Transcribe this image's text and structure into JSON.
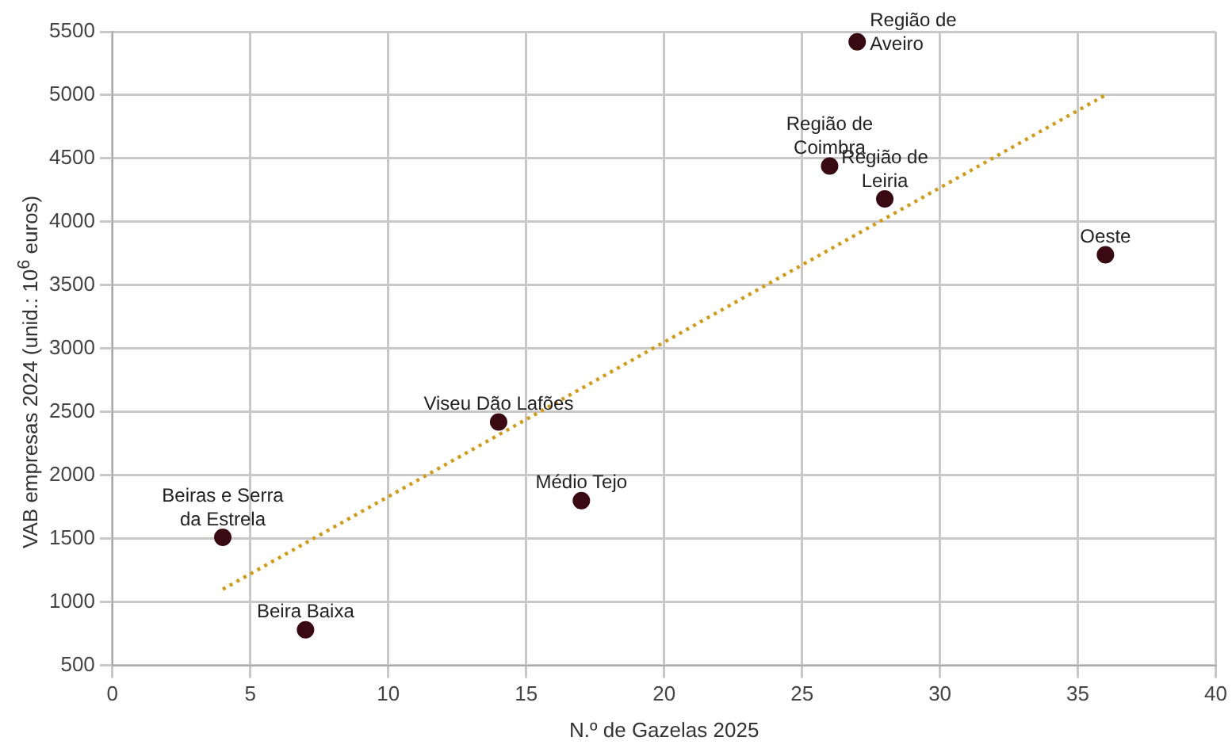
{
  "chart_data": {
    "type": "scatter",
    "xlabel": "N.º de Gazelas 2025",
    "ylabel": "VAB empresas 2024 (unid.: 10$^{6}$ euros)",
    "xlim": [
      0,
      40
    ],
    "xticks": [
      0,
      5,
      10,
      15,
      20,
      25,
      30,
      35,
      40
    ],
    "ylim": [
      500,
      5500
    ],
    "yticks": [
      500,
      1000,
      1500,
      2000,
      2500,
      3000,
      3500,
      4000,
      4500,
      5000,
      5500
    ],
    "grid": true,
    "legend": false,
    "marker": "circle",
    "series": [
      {
        "name": "Beiras e Serra\nda Estrela",
        "color": "#3a0a12",
        "x": [
          4
        ],
        "values": [
          1510
        ]
      },
      {
        "name": "Beira Baixa",
        "color": "#3a0a12",
        "x": [
          7
        ],
        "values": [
          780
        ]
      },
      {
        "name": "Viseu Dão Lafões",
        "color": "#3a0a12",
        "x": [
          14
        ],
        "values": [
          2420
        ]
      },
      {
        "name": "Médio Tejo",
        "color": "#3a0a12",
        "x": [
          17
        ],
        "values": [
          1800
        ]
      },
      {
        "name": "Região de\nCoimbra",
        "color": "#3a0a12",
        "x": [
          26
        ],
        "values": [
          4440
        ]
      },
      {
        "name": "Região de\nAveiro",
        "color": "#3a0a12",
        "x": [
          27
        ],
        "values": [
          5420
        ]
      },
      {
        "name": "Região de\nLeiria",
        "color": "#3a0a12",
        "x": [
          28
        ],
        "values": [
          4180
        ]
      },
      {
        "name": "Oeste",
        "color": "#3a0a12",
        "x": [
          36
        ],
        "values": [
          3740
        ]
      },
      {
        "type": "line",
        "color": "#d49a12",
        "line_style": "dotted",
        "marker": "none",
        "x": [
          4,
          36
        ],
        "values": [
          1100,
          5000
        ]
      }
    ]
  }
}
